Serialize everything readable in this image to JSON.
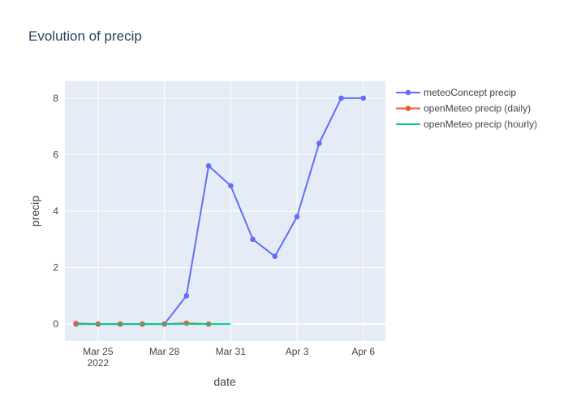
{
  "chart_data": {
    "type": "line",
    "title": "Evolution of precip",
    "xlabel": "date",
    "ylabel": "precip",
    "xlim": [
      "2022-03-23T12:00",
      "2022-04-07T00:00"
    ],
    "ylim": [
      -0.6,
      8.6
    ],
    "y_ticks": [
      0,
      2,
      4,
      6,
      8
    ],
    "x_ticks": [
      {
        "date": "2022-03-25",
        "label": "Mar 25",
        "sublabel": "2022"
      },
      {
        "date": "2022-03-28",
        "label": "Mar 28",
        "sublabel": ""
      },
      {
        "date": "2022-03-31",
        "label": "Mar 31",
        "sublabel": ""
      },
      {
        "date": "2022-04-03",
        "label": "Apr 3",
        "sublabel": ""
      },
      {
        "date": "2022-04-06",
        "label": "Apr 6",
        "sublabel": ""
      }
    ],
    "grid": true,
    "legend_position": "top-right",
    "colors": {
      "background": "#e5ecf6",
      "grid": "#ffffff",
      "text": "#444444",
      "title": "#2a3f5f"
    },
    "series": [
      {
        "name": "meteoConcept precip",
        "color": "#636efa",
        "mode": "lines+markers",
        "x": [
          "2022-03-24",
          "2022-03-25",
          "2022-03-26",
          "2022-03-27",
          "2022-03-28",
          "2022-03-29",
          "2022-03-30",
          "2022-03-31",
          "2022-04-01",
          "2022-04-02",
          "2022-04-03",
          "2022-04-04",
          "2022-04-05",
          "2022-04-06"
        ],
        "y": [
          0,
          0,
          0,
          0,
          0,
          1.0,
          5.6,
          4.9,
          3.0,
          2.4,
          3.8,
          6.4,
          8.0,
          8.0
        ]
      },
      {
        "name": "openMeteo precip (daily)",
        "color": "#ef553b",
        "mode": "lines+markers",
        "x": [
          "2022-03-24",
          "2022-03-25",
          "2022-03-26",
          "2022-03-27",
          "2022-03-28",
          "2022-03-29",
          "2022-03-30"
        ],
        "y": [
          0.02,
          0,
          0,
          0,
          0,
          0.03,
          0
        ]
      },
      {
        "name": "openMeteo precip (hourly)",
        "color": "#00cc96",
        "mode": "lines",
        "x": [
          "2022-03-24",
          "2022-03-25",
          "2022-03-26",
          "2022-03-27",
          "2022-03-28",
          "2022-03-29",
          "2022-03-30",
          "2022-03-31"
        ],
        "y": [
          0,
          0,
          0,
          0,
          0,
          0,
          0,
          0
        ]
      }
    ]
  }
}
